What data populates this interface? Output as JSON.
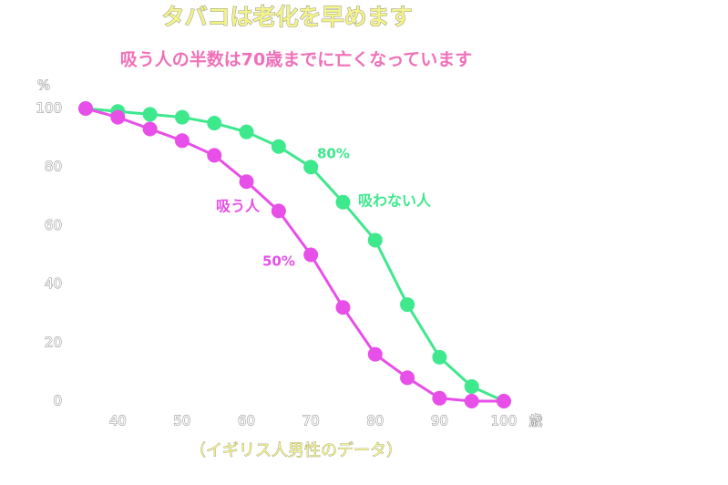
{
  "chart_data": {
    "type": "line",
    "title": "タバコは老化を早めます",
    "subtitle": "吸う人の半数は70歳までに亡くなっています",
    "caption": "（イギリス人男性のデータ）",
    "x_unit": "歳",
    "y_unit": "%",
    "x": [
      35,
      40,
      45,
      50,
      55,
      60,
      65,
      70,
      75,
      80,
      85,
      90,
      95,
      100
    ],
    "series": [
      {
        "name": "吸わない人",
        "color": "#3ee88c",
        "values": [
          100,
          99,
          98,
          97,
          95,
          92,
          87,
          80,
          68,
          55,
          33,
          15,
          5,
          0
        ]
      },
      {
        "name": "吸う人",
        "color": "#e84ee8",
        "values": [
          100,
          97,
          93,
          89,
          84,
          75,
          65,
          50,
          32,
          16,
          8,
          1,
          0,
          0
        ]
      }
    ],
    "annotations": [
      "80%",
      "50%"
    ],
    "xlim": [
      35,
      100
    ],
    "xticks": [
      40,
      50,
      60,
      70,
      80,
      90,
      100
    ],
    "ylim": [
      0,
      100
    ],
    "yticks": [
      0,
      20,
      40,
      60,
      80,
      100
    ],
    "grid": false
  }
}
